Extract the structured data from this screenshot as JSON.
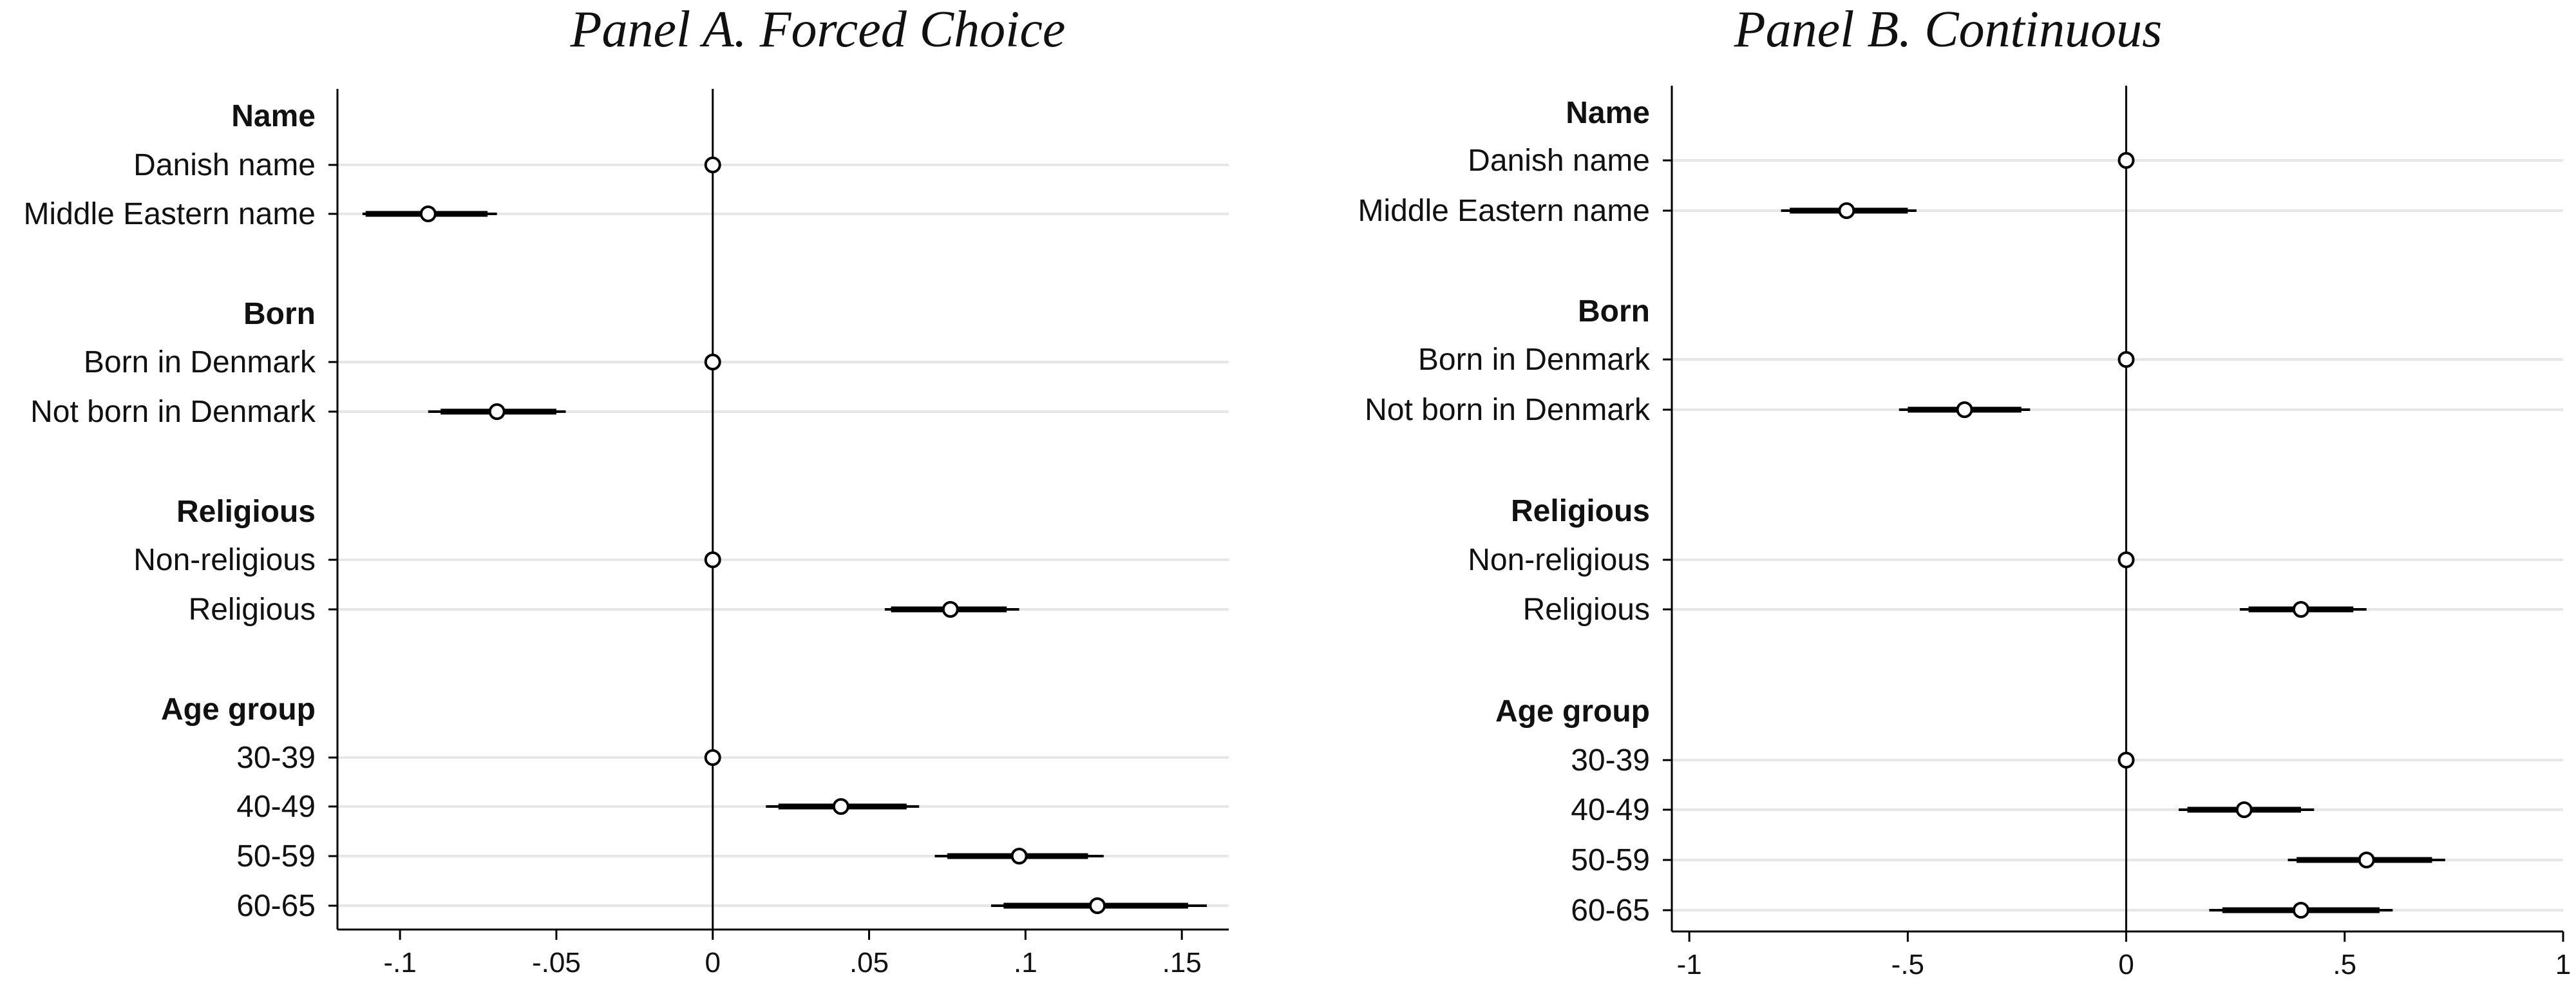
{
  "chart_data": [
    {
      "type": "scatter",
      "title": "Panel A. Forced Choice",
      "xlabel": "",
      "ylabel": "",
      "xlim": [
        -0.12,
        0.165
      ],
      "xticks": [
        -0.1,
        -0.05,
        0,
        0.05,
        0.1,
        0.15
      ],
      "xtick_labels": [
        "-.1",
        "-.05",
        "0",
        ".05",
        ".1",
        ".15"
      ],
      "zero_line": true,
      "grid": "horizontal",
      "rows": [
        {
          "label": "Name",
          "group": true
        },
        {
          "label": "Danish name",
          "value": 0
        },
        {
          "label": "Middle Eastern name",
          "value": -0.091,
          "ci90": [
            -0.111,
            -0.072
          ],
          "ci95": [
            -0.112,
            -0.069
          ]
        },
        {
          "label": "Born",
          "group": true
        },
        {
          "label": "Born in Denmark",
          "value": 0
        },
        {
          "label": "Not born in Denmark",
          "value": -0.069,
          "ci90": [
            -0.087,
            -0.05
          ],
          "ci95": [
            -0.091,
            -0.047
          ]
        },
        {
          "label": "Religious",
          "group": true
        },
        {
          "label": "Non-religious",
          "value": 0
        },
        {
          "label": "Religious",
          "value": 0.076,
          "ci90": [
            0.057,
            0.094
          ],
          "ci95": [
            0.055,
            0.098
          ]
        },
        {
          "label": "Age group",
          "group": true
        },
        {
          "label": "30-39",
          "value": 0
        },
        {
          "label": "40-49",
          "value": 0.041,
          "ci90": [
            0.021,
            0.062
          ],
          "ci95": [
            0.017,
            0.066
          ]
        },
        {
          "label": "50-59",
          "value": 0.098,
          "ci90": [
            0.075,
            0.12
          ],
          "ci95": [
            0.071,
            0.125
          ]
        },
        {
          "label": "60-65",
          "value": 0.123,
          "ci90": [
            0.093,
            0.152
          ],
          "ci95": [
            0.089,
            0.158
          ]
        }
      ]
    },
    {
      "type": "scatter",
      "title": "Panel B. Continuous",
      "xlabel": "",
      "ylabel": "",
      "xlim": [
        -1.04,
        1.0
      ],
      "xticks": [
        -1,
        -0.5,
        0,
        0.5,
        1
      ],
      "xtick_labels": [
        "-1",
        "-.5",
        "0",
        ".5",
        "1"
      ],
      "zero_line": true,
      "grid": "horizontal",
      "rows": [
        {
          "label": "Name",
          "group": true
        },
        {
          "label": "Danish name",
          "value": 0
        },
        {
          "label": "Middle Eastern name",
          "value": -0.64,
          "ci90": [
            -0.77,
            -0.5
          ],
          "ci95": [
            -0.79,
            -0.48
          ]
        },
        {
          "label": "Born",
          "group": true
        },
        {
          "label": "Born in Denmark",
          "value": 0
        },
        {
          "label": "Not born in Denmark",
          "value": -0.37,
          "ci90": [
            -0.5,
            -0.24
          ],
          "ci95": [
            -0.52,
            -0.22
          ]
        },
        {
          "label": "Religious",
          "group": true
        },
        {
          "label": "Non-religious",
          "value": 0
        },
        {
          "label": "Religious",
          "value": 0.4,
          "ci90": [
            0.28,
            0.52
          ],
          "ci95": [
            0.26,
            0.55
          ]
        },
        {
          "label": "Age group",
          "group": true
        },
        {
          "label": "30-39",
          "value": 0
        },
        {
          "label": "40-49",
          "value": 0.27,
          "ci90": [
            0.14,
            0.4
          ],
          "ci95": [
            0.12,
            0.43
          ]
        },
        {
          "label": "50-59",
          "value": 0.55,
          "ci90": [
            0.39,
            0.7
          ],
          "ci95": [
            0.37,
            0.73
          ]
        },
        {
          "label": "60-65",
          "value": 0.4,
          "ci90": [
            0.22,
            0.58
          ],
          "ci95": [
            0.19,
            0.61
          ]
        }
      ]
    }
  ]
}
